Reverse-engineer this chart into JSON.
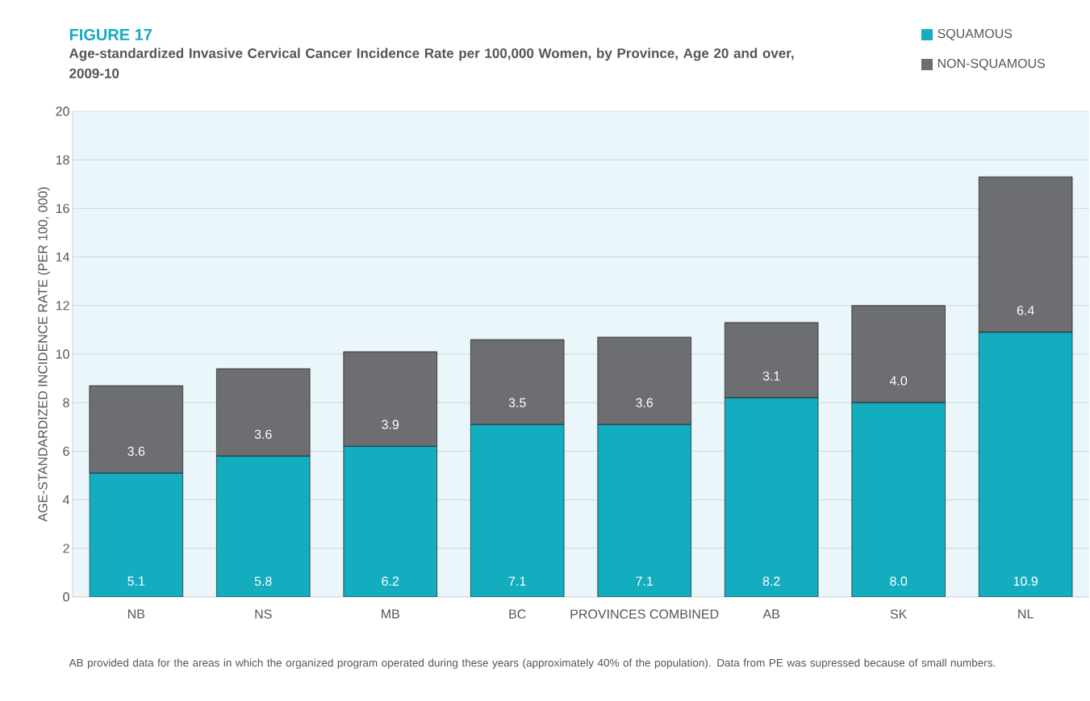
{
  "chart_data": {
    "type": "bar",
    "stacked": true,
    "title": "FIGURE 17",
    "subtitle": "Age-standardized Invasive Cervical Cancer Incidence Rate per 100,000 Women, by Province, Age 20 and over, 2009-10",
    "ylabel": "AGE-STANDARDIZED INCIDENCE RATE (PER 100, 000)",
    "categories": [
      "NB",
      "NS",
      "MB",
      "BC",
      "PROVINCES COMBINED",
      "AB",
      "SK",
      "NL"
    ],
    "series": [
      {
        "name": "SQUAMOUS",
        "color": "#13adbf",
        "values": [
          5.1,
          5.8,
          6.2,
          7.1,
          7.1,
          8.2,
          8.0,
          10.9
        ],
        "value_labels": [
          "5.1",
          "5.8",
          "6.2",
          "7.1",
          "7.1",
          "8.2",
          "8.0",
          "10.9"
        ]
      },
      {
        "name": "NON-SQUAMOUS",
        "color": "#6d6e71",
        "values": [
          3.6,
          3.6,
          3.9,
          3.5,
          3.6,
          3.1,
          4.0,
          6.4
        ],
        "value_labels": [
          "3.6",
          "3.6",
          "3.9",
          "3.5",
          "3.6",
          "3.1",
          "4.0",
          "6.4"
        ]
      }
    ],
    "ylim": [
      0,
      20
    ],
    "yticks": [
      0,
      2,
      4,
      6,
      8,
      10,
      12,
      14,
      16,
      18,
      20
    ],
    "grid": "y",
    "legend": "top right",
    "annotations": [
      "AB provided data for the areas in which the organized program operated during these years (approximately 40% of the population). Data from PE was supressed because of small numbers."
    ]
  }
}
